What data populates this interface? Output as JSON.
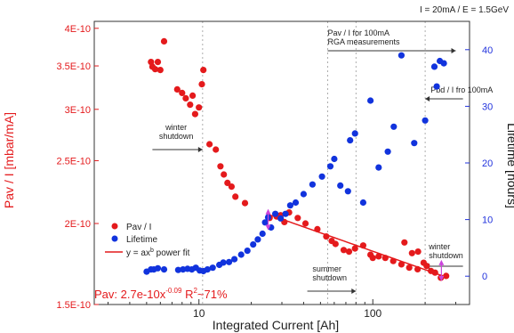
{
  "chart_data": {
    "type": "scatter",
    "top_label": "I = 20mA / E = 1.5GeV",
    "xlabel": "Integrated Current [Ah]",
    "ylabel_left": "Pav / I [mbar/mA]",
    "ylabel_right": "Lifetime [hours]",
    "x_scale": "log",
    "x_range": [
      2.5,
      360
    ],
    "x_ticks": [
      10,
      100
    ],
    "x_tick_labels": [
      "10",
      "100"
    ],
    "y_left_scale": "log",
    "y_left_range": [
      1.5e-10,
      4.1e-10
    ],
    "y_left_ticks": [
      1.5e-10,
      2e-10,
      2.5e-10,
      3e-10,
      3.5e-10,
      4e-10
    ],
    "y_left_tick_labels": [
      "1.5E-10",
      "2E-10",
      "2.5E-10",
      "3E-10",
      "3.5E-10",
      "4E-10"
    ],
    "y_right_range": [
      -5,
      45
    ],
    "y_right_ticks": [
      0,
      10,
      20,
      30,
      40
    ],
    "y_right_tick_labels": [
      "0",
      "10",
      "20",
      "30",
      "40"
    ],
    "legend_placement": "left",
    "series": [
      {
        "name": "Pav / I",
        "color": "#e41a1c",
        "axis": "left",
        "points": [
          [
            5.3,
            3.55e-10
          ],
          [
            5.4,
            3.49e-10
          ],
          [
            5.6,
            3.46e-10
          ],
          [
            5.8,
            3.55e-10
          ],
          [
            6.0,
            3.45e-10
          ],
          [
            6.3,
            3.82e-10
          ],
          [
            7.5,
            3.22e-10
          ],
          [
            8.0,
            3.18e-10
          ],
          [
            8.4,
            3.12e-10
          ],
          [
            8.9,
            3.05e-10
          ],
          [
            9.2,
            3.15e-10
          ],
          [
            9.5,
            2.95e-10
          ],
          [
            10.0,
            3.02e-10
          ],
          [
            10.4,
            3.28e-10
          ],
          [
            10.6,
            3.45e-10
          ],
          [
            11.5,
            2.65e-10
          ],
          [
            12.5,
            2.6e-10
          ],
          [
            13.3,
            2.45e-10
          ],
          [
            13.9,
            2.38e-10
          ],
          [
            14.6,
            2.31e-10
          ],
          [
            15.4,
            2.28e-10
          ],
          [
            16.2,
            2.2e-10
          ],
          [
            18.4,
            2.15e-10
          ],
          [
            25.5,
            2.04e-10
          ],
          [
            28.0,
            2.05e-10
          ],
          [
            29.5,
            2.06e-10
          ],
          [
            31.0,
            2.01e-10
          ],
          [
            33.0,
            2.08e-10
          ],
          [
            37.0,
            2.04e-10
          ],
          [
            41.0,
            2e-10
          ],
          [
            48.0,
            1.96e-10
          ],
          [
            54.0,
            1.91e-10
          ],
          [
            58.0,
            1.88e-10
          ],
          [
            61.0,
            1.86e-10
          ],
          [
            68.0,
            1.82e-10
          ],
          [
            73.0,
            1.81e-10
          ],
          [
            79.0,
            1.83e-10
          ],
          [
            88.0,
            1.85e-10
          ],
          [
            97.0,
            1.79e-10
          ],
          [
            100.0,
            1.77e-10
          ],
          [
            108.0,
            1.78e-10
          ],
          [
            118.0,
            1.77e-10
          ],
          [
            131.0,
            1.75e-10
          ],
          [
            146.0,
            1.73e-10
          ],
          [
            162.0,
            1.71e-10
          ],
          [
            181.0,
            1.7e-10
          ],
          [
            204.0,
            1.72e-10
          ],
          [
            216.0,
            1.69e-10
          ],
          [
            228.0,
            1.68e-10
          ],
          [
            246.0,
            1.65e-10
          ],
          [
            264.0,
            1.66e-10
          ],
          [
            152.0,
            1.87e-10
          ],
          [
            182.0,
            1.81e-10
          ],
          [
            196.0,
            1.74e-10
          ],
          [
            168.0,
            1.8e-10
          ]
        ]
      },
      {
        "name": "Lifetime",
        "color": "#1133dd",
        "axis": "right",
        "points": [
          [
            5.0,
            0.8
          ],
          [
            5.3,
            1.2
          ],
          [
            5.5,
            1.2
          ],
          [
            5.8,
            1.4
          ],
          [
            6.3,
            1.2
          ],
          [
            7.6,
            1.1
          ],
          [
            8.1,
            1.2
          ],
          [
            8.6,
            1.3
          ],
          [
            9.1,
            1.2
          ],
          [
            9.6,
            1.5
          ],
          [
            10.1,
            1.0
          ],
          [
            10.6,
            0.9
          ],
          [
            11.2,
            1.2
          ],
          [
            12.0,
            1.5
          ],
          [
            13.1,
            2.0
          ],
          [
            13.8,
            2.4
          ],
          [
            14.9,
            2.5
          ],
          [
            16.0,
            3.0
          ],
          [
            17.5,
            3.8
          ],
          [
            19.0,
            4.5
          ],
          [
            20.5,
            5.6
          ],
          [
            21.8,
            6.5
          ],
          [
            23.2,
            7.5
          ],
          [
            24.0,
            9.5
          ],
          [
            25.0,
            10.4
          ],
          [
            26.0,
            8.6
          ],
          [
            27.5,
            11.0
          ],
          [
            29.5,
            10.2
          ],
          [
            31.5,
            11.0
          ],
          [
            33.5,
            12.5
          ],
          [
            36.0,
            13.0
          ],
          [
            40.0,
            14.5
          ],
          [
            45.0,
            16.2
          ],
          [
            51.0,
            17.6
          ],
          [
            57.0,
            19.4
          ],
          [
            60.0,
            20.7
          ],
          [
            65.0,
            16.0
          ],
          [
            72.0,
            15.0
          ],
          [
            74.0,
            24.0
          ],
          [
            79.0,
            25.2
          ],
          [
            88.0,
            13.0
          ],
          [
            97.0,
            31.0
          ],
          [
            108.0,
            19.2
          ],
          [
            122.0,
            22.0
          ],
          [
            132.0,
            26.4
          ],
          [
            146.0,
            39.0
          ],
          [
            173.0,
            23.5
          ],
          [
            200.0,
            27.5
          ],
          [
            226.0,
            37.0
          ],
          [
            243.0,
            38.0
          ],
          [
            256.0,
            37.6
          ],
          [
            233.0,
            33.5
          ]
        ]
      }
    ],
    "fit": {
      "name": "y = ax^b power fit",
      "legend_label_base": "y = ax",
      "legend_label_exp": "b",
      "legend_label_tail": " power fit",
      "color": "#e41a1c",
      "a": 2.7e-10,
      "b": -0.09,
      "x_range": [
        24.5,
        270
      ],
      "equation_prefix": "Pav: 2.7e-10x",
      "equation_exponent": "-0.09",
      "equation_suffix": " R",
      "equation_r2_exp": "2",
      "equation_tail": "~71%"
    },
    "vertical_lines_x": [
      10.5,
      55,
      80,
      200
    ],
    "annotations": [
      {
        "id": "winter1",
        "lines": [
          "winter",
          "shutdown"
        ],
        "arrow_from": 5.4,
        "arrow_to": 10.5,
        "arrow_dir": "right",
        "text_x": 7.4
      },
      {
        "id": "pav_rga",
        "lines": [
          "Pav / I for 100mA",
          "RGA measurements"
        ],
        "arrow_from": 55,
        "arrow_to": 300,
        "arrow_dir": "right",
        "text_x": 55
      },
      {
        "id": "pbd",
        "lines": [
          "Pbd / I fro 100mA"
        ],
        "arrow_from": 200,
        "arrow_to": 330,
        "arrow_dir": "left",
        "text_x": 215
      },
      {
        "id": "summer",
        "lines": [
          "summer",
          "shutdown"
        ],
        "arrow_from": 42,
        "arrow_to": 80,
        "arrow_dir": "right",
        "text_x": 45
      },
      {
        "id": "winter2",
        "lines": [
          "winter",
          "shutdown"
        ],
        "arrow_from": 200,
        "arrow_to": 330,
        "arrow_dir": "left",
        "text_x": 210
      }
    ],
    "markers": [
      {
        "x": 25.0,
        "y_right": 10.0,
        "color": "#cc44dd"
      },
      {
        "x": 248.0,
        "y_right": 1.0,
        "color": "#cc44dd"
      }
    ]
  }
}
